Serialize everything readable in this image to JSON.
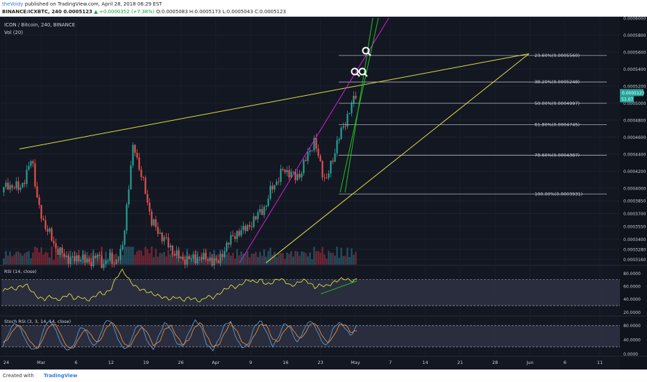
{
  "header": {
    "author": "theVoidy",
    "published": "published on TradingView.com, April 28, 2018 06:29 EST",
    "symbol": "BINANCE:ICXBTC, 240",
    "price": "0.0005123",
    "change": "▲ +0.0000352 (+7.38%)",
    "ohlc": "O:0.0005083 H:0.0005173 L:0.0005043 C:0.0005123"
  },
  "legend": {
    "title": "ICON / Bitcoin, 240, BINANCE",
    "volume": "Vol (20)"
  },
  "footer": {
    "created_with": "Created with",
    "brand": "TradingView"
  },
  "colors": {
    "background": "#131722",
    "up": "#26a69a",
    "down": "#ef5350",
    "trendline": "#e0e042",
    "pink_channel": "#d620d6",
    "green_channel": "#22c322",
    "fib_line": "#b2b5be",
    "rsi": "#e0e042",
    "stoch_k": "#5b9bd5",
    "stoch_d": "#ef8c3c"
  },
  "chart_data": {
    "type": "candlestick",
    "title": "ICON / Bitcoin, 240, BINANCE",
    "x_tick_labels": [
      "24",
      "Mar",
      "6",
      "12",
      "19",
      "26",
      "Apr",
      "9",
      "16",
      "23",
      "May",
      "7",
      "14",
      "21",
      "28",
      "Jun",
      "6",
      "11"
    ],
    "price_axis": {
      "ylim": [
        0.00031,
        0.0006
      ],
      "tick_labels": [
        "0.0003160",
        "0.0003280",
        "0.0003400",
        "0.0003550",
        "0.0003700",
        "0.0003850",
        "0.0004000",
        "0.0004200",
        "0.0004400",
        "0.0004600",
        "0.0004800",
        "0.0005000",
        "0.0005200",
        "0.0005400",
        "0.0005600",
        "0.0005800",
        "0.0006000"
      ],
      "last_price": "0.0005123",
      "last_volume": "51.07"
    },
    "fibonacci": [
      {
        "label": "23.60%(0.0005560)",
        "value": 0.000556
      },
      {
        "label": "38.20%(0.0005248)",
        "value": 0.0005248
      },
      {
        "label": "50.00%(0.0004997)",
        "value": 0.0004997
      },
      {
        "label": "61.80%(0.0004745)",
        "value": 0.0004745
      },
      {
        "label": "78.60%(0.0004387)",
        "value": 0.0004387
      },
      {
        "label": "100.00%(0.0003931)",
        "value": 0.0003931
      }
    ],
    "price_path": [
      0.000395,
      0.000405,
      0.0004,
      0.000402,
      0.00041,
      0.00044,
      0.00038,
      0.00036,
      0.000345,
      0.00033,
      0.000322,
      0.000318,
      0.000315,
      0.00032,
      0.000313,
      0.000315,
      0.00032,
      0.00031,
      0.000318,
      0.000312,
      0.000325,
      0.00039,
      0.000455,
      0.00042,
      0.000395,
      0.00036,
      0.00035,
      0.00034,
      0.000332,
      0.00032,
      0.000318,
      0.000314,
      0.00032,
      0.000315,
      0.000322,
      0.00031,
      0.000318,
      0.00032,
      0.000345,
      0.00034,
      0.000355,
      0.00035,
      0.000365,
      0.00037,
      0.00038,
      0.0004,
      0.00041,
      0.000422,
      0.000418,
      0.000412,
      0.00042,
      0.00044,
      0.000455,
      0.000432,
      0.000405,
      0.000432,
      0.000455,
      0.000475,
      0.00049,
      0.0005123
    ],
    "rsi": {
      "label": "RSI (14, close)",
      "ylim": [
        15,
        90
      ],
      "tick_labels": [
        "80.0000",
        "60.0000",
        "40.0000",
        "20.0000"
      ],
      "band": [
        30,
        70
      ],
      "values": [
        52,
        58,
        55,
        60,
        62,
        50,
        42,
        40,
        45,
        38,
        42,
        48,
        40,
        44,
        38,
        42,
        50,
        48,
        55,
        75,
        85,
        70,
        60,
        55,
        52,
        48,
        45,
        42,
        40,
        44,
        38,
        42,
        40,
        36,
        45,
        42,
        48,
        55,
        60,
        58,
        65,
        70,
        66,
        70,
        62,
        66,
        72,
        68,
        60,
        64,
        70,
        66,
        58,
        62,
        60,
        65,
        70,
        72,
        68,
        70
      ],
      "trend": [
        [
          53,
          48
        ],
        [
          59,
          68
        ]
      ]
    },
    "stoch_rsi": {
      "label": "Stoch RSI (3, 3, 14, 14, close)",
      "ylim": [
        -5,
        105
      ],
      "tick_labels": [
        "80.0000",
        "40.0000",
        "0.0000"
      ],
      "band": [
        20,
        80
      ],
      "k": [
        20,
        60,
        90,
        70,
        30,
        10,
        20,
        80,
        95,
        60,
        20,
        10,
        30,
        80,
        60,
        20,
        40,
        90,
        95,
        50,
        15,
        20,
        70,
        85,
        40,
        10,
        50,
        90,
        70,
        30,
        20,
        60,
        95,
        80,
        25,
        10,
        40,
        85,
        90,
        40,
        15,
        30,
        80,
        95,
        60,
        20,
        50,
        90,
        70,
        30,
        60,
        95,
        80,
        40,
        20,
        70,
        90,
        75,
        50,
        80
      ],
      "d": [
        30,
        45,
        75,
        80,
        50,
        25,
        15,
        55,
        85,
        80,
        40,
        15,
        20,
        55,
        70,
        45,
        30,
        65,
        90,
        75,
        35,
        18,
        45,
        75,
        65,
        25,
        30,
        70,
        80,
        50,
        25,
        40,
        75,
        90,
        50,
        20,
        25,
        60,
        88,
        65,
        30,
        22,
        55,
        85,
        80,
        40,
        35,
        70,
        80,
        50,
        45,
        80,
        88,
        60,
        30,
        45,
        80,
        85,
        60,
        65
      ]
    }
  }
}
